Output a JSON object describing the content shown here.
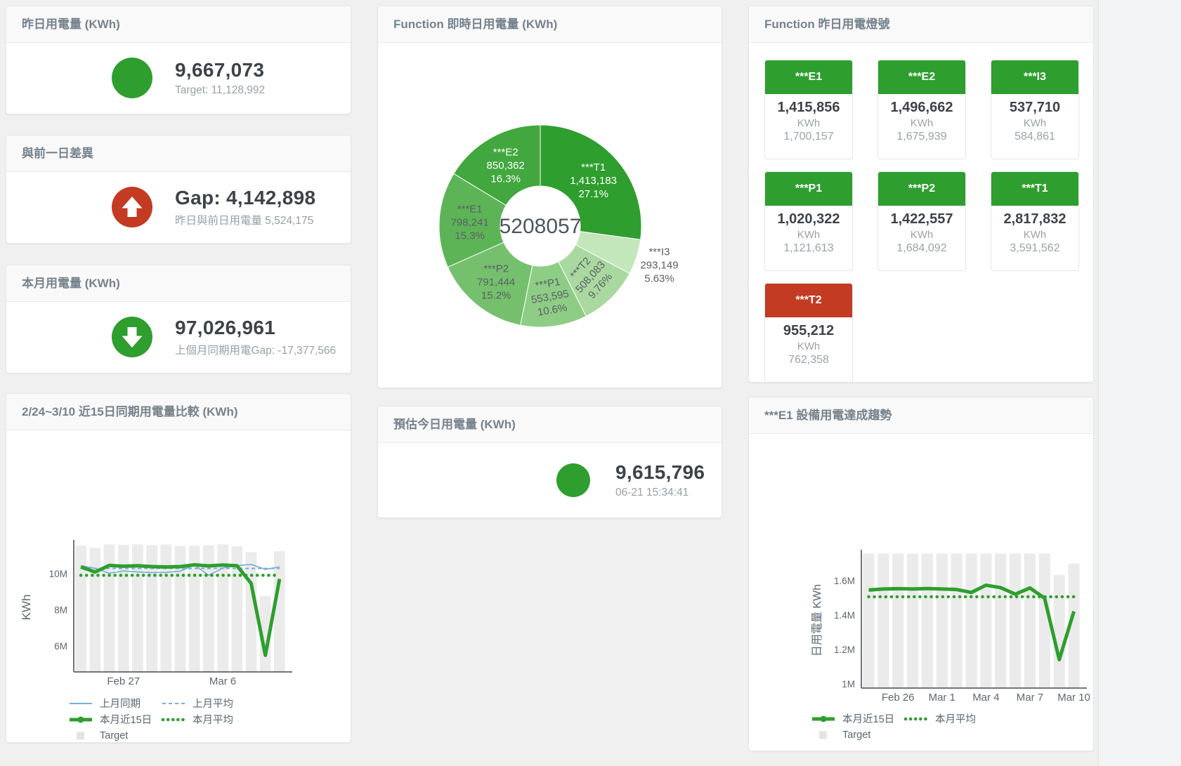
{
  "colors": {
    "green": "#2e9e2e",
    "red": "#c23b22",
    "blue": "#7aaed6",
    "bar_gray": "#ebebeb",
    "value_text": "#3d4349",
    "subtext": "#97a0a6",
    "header_text": "#76828c"
  },
  "left_column": {
    "yesterday_card": {
      "title": "昨日用電量 (KWh)",
      "value": "9,667,073",
      "subtext": "Target: 11,128,992"
    },
    "gap_card": {
      "title": "與前一日差異",
      "value": "Gap: 4,142,898",
      "subtext": "昨日與前日用電量 5,524,175"
    },
    "month_card": {
      "title": "本月用電量 (KWh)",
      "value": "97,026,961",
      "subtext": "上個月同期用電Gap: -17,377,566"
    },
    "compare_card_title": "2/24~3/10 近15日同期用電量比較 (KWh)"
  },
  "center_column": {
    "donut_card_title": "Function 即時日用電量 (KWh)",
    "estimate_card": {
      "title": "預估今日用電量 (KWh)",
      "value": "9,615,796",
      "subtext": "06-21 15:34:41"
    }
  },
  "right_column": {
    "lights_card_title": "Function 昨日用電燈號",
    "unit_label": "KWh",
    "tiles": [
      {
        "name": "***E1",
        "value": "1,415,856",
        "target": "1,700,157",
        "status": "green"
      },
      {
        "name": "***E2",
        "value": "1,496,662",
        "target": "1,675,939",
        "status": "green"
      },
      {
        "name": "***I3",
        "value": "537,710",
        "target": "584,861",
        "status": "green"
      },
      {
        "name": "***P1",
        "value": "1,020,322",
        "target": "1,121,613",
        "status": "green"
      },
      {
        "name": "***P2",
        "value": "1,422,557",
        "target": "1,684,092",
        "status": "green"
      },
      {
        "name": "***T1",
        "value": "2,817,832",
        "target": "3,591,562",
        "status": "green"
      },
      {
        "name": "***T2",
        "value": "955,212",
        "target": "762,358",
        "status": "red"
      }
    ],
    "trend_card_title": "***E1 設備用電達成趨勢"
  },
  "chart_data": [
    {
      "id": "realtime",
      "type": "pie",
      "title": "Function 即時日用電量 (KWh)",
      "center_label": "5208057",
      "slices": [
        {
          "name": "***T1",
          "value": 1413183,
          "value_label": "1,413,183",
          "pct": "27.1%",
          "color": "#2e9e2e",
          "label_color": "#ffffff",
          "rotate": 0,
          "outside": false
        },
        {
          "name": "***I3",
          "value": 293149,
          "value_label": "293,149",
          "pct": "5.63%",
          "color": "#c3e6bb",
          "label_color": "#5a6065",
          "rotate": 0,
          "outside": true
        },
        {
          "name": "***T2",
          "value": 508083,
          "value_label": "508,083",
          "pct": "9.76%",
          "color": "#a9d9a0",
          "label_color": "#5a6065",
          "rotate": -48,
          "outside": false
        },
        {
          "name": "***P1",
          "value": 553595,
          "value_label": "553,595",
          "pct": "10.6%",
          "color": "#8ecd85",
          "label_color": "#5a6065",
          "rotate": -10,
          "outside": false
        },
        {
          "name": "***P2",
          "value": 791444,
          "value_label": "791,444",
          "pct": "15.2%",
          "color": "#75c06d",
          "label_color": "#5a6065",
          "rotate": 0,
          "outside": false
        },
        {
          "name": "***E1",
          "value": 798241,
          "value_label": "798,241",
          "pct": "15.3%",
          "color": "#5db457",
          "label_color": "#5a6065",
          "rotate": 0,
          "outside": false
        },
        {
          "name": "***E2",
          "value": 850362,
          "value_label": "850,362",
          "pct": "16.3%",
          "color": "#41a73e",
          "label_color": "#ffffff",
          "rotate": 0,
          "outside": false
        }
      ]
    },
    {
      "id": "compare",
      "type": "line",
      "title": "2/24~3/10 近15日同期用電量比較 (KWh)",
      "ylabel": "KWh",
      "y_domain": [
        4560000,
        11700000
      ],
      "yticks": [
        {
          "v": 6000000,
          "label": "6M"
        },
        {
          "v": 8000000,
          "label": "8M"
        },
        {
          "v": 10000000,
          "label": "10M"
        }
      ],
      "n": 15,
      "xticks": [
        {
          "i": 3,
          "label": "Feb 27"
        },
        {
          "i": 10,
          "label": "Mar 6"
        }
      ],
      "target_bars": {
        "name": "Target",
        "color": "#ebebeb",
        "values": [
          11550000,
          11420000,
          11600000,
          11580000,
          11600000,
          11560000,
          11600000,
          11520000,
          11530000,
          11560000,
          11600000,
          11500000,
          11180000,
          8760000,
          11230000
        ]
      },
      "series": [
        {
          "name": "上月同期",
          "color": "#7aaed6",
          "width": 1.7,
          "dash": null,
          "values": [
            10430000,
            10290000,
            10010000,
            10140000,
            10090000,
            10050000,
            10060000,
            10130000,
            10470000,
            9900000,
            10300000,
            10440000,
            10500000,
            10230000,
            10360000
          ]
        },
        {
          "name": "上月平均",
          "color": "#7aaed6",
          "width": 2,
          "dash": "5 4",
          "const": 10280000
        },
        {
          "name": "本月平均",
          "color": "#2e9e2e",
          "width": 4.5,
          "dash": "0.1 8",
          "linecap": "round",
          "const": 9900000
        },
        {
          "name": "本月近15日",
          "color": "#2e9e2e",
          "width": 5,
          "dash": null,
          "values": [
            10360000,
            10080000,
            10450000,
            10400000,
            10430000,
            10380000,
            10360000,
            10380000,
            10480000,
            10420000,
            10470000,
            10430000,
            9450000,
            5480000,
            9700000
          ]
        }
      ],
      "legend_rows": [
        [
          {
            "label": "上月同期",
            "swatch": "line",
            "color": "#7aaed6"
          },
          {
            "label": "上月平均",
            "swatch": "dash",
            "color": "#7aaed6"
          }
        ],
        [
          {
            "label": "本月近15日",
            "swatch": "thickline",
            "color": "#2e9e2e"
          },
          {
            "label": "本月平均",
            "swatch": "dots",
            "color": "#2e9e2e"
          }
        ],
        [
          {
            "label": "Target",
            "swatch": "square",
            "color": "#e4e4e4"
          }
        ]
      ]
    },
    {
      "id": "trend",
      "type": "line",
      "title": "***E1 設備用電達成趨勢",
      "ylabel": "日用電量 KWh",
      "y_domain": [
        975000,
        1763000
      ],
      "yticks": [
        {
          "v": 1000000,
          "label": "1M"
        },
        {
          "v": 1200000,
          "label": "1.2M"
        },
        {
          "v": 1400000,
          "label": "1.4M"
        },
        {
          "v": 1600000,
          "label": "1.6M"
        }
      ],
      "n": 15,
      "xticks": [
        {
          "i": 2,
          "label": "Feb 26"
        },
        {
          "i": 5,
          "label": "Mar 1"
        },
        {
          "i": 8,
          "label": "Mar 4"
        },
        {
          "i": 11,
          "label": "Mar 7"
        },
        {
          "i": 14,
          "label": "Mar 10"
        }
      ],
      "target_bars": {
        "name": "Target",
        "color": "#ebebeb",
        "values": [
          1758000,
          1758000,
          1758000,
          1758000,
          1758000,
          1758000,
          1758000,
          1758000,
          1758000,
          1758000,
          1758000,
          1758000,
          1758000,
          1632000,
          1700000
        ]
      },
      "series": [
        {
          "name": "本月平均",
          "color": "#2e9e2e",
          "width": 4.5,
          "dash": "0.1 8",
          "linecap": "round",
          "const": 1506000
        },
        {
          "name": "本月近15日",
          "color": "#2e9e2e",
          "width": 5,
          "dash": null,
          "values": [
            1545000,
            1551000,
            1553000,
            1551000,
            1554000,
            1551000,
            1548000,
            1531000,
            1573000,
            1559000,
            1521000,
            1557000,
            1498000,
            1140000,
            1421000
          ]
        }
      ],
      "legend_rows": [
        [
          {
            "label": "本月近15日",
            "swatch": "thickline",
            "color": "#2e9e2e"
          },
          {
            "label": "本月平均",
            "swatch": "dots",
            "color": "#2e9e2e"
          }
        ],
        [
          {
            "label": "Target",
            "swatch": "square",
            "color": "#e4e4e4"
          }
        ]
      ]
    }
  ]
}
